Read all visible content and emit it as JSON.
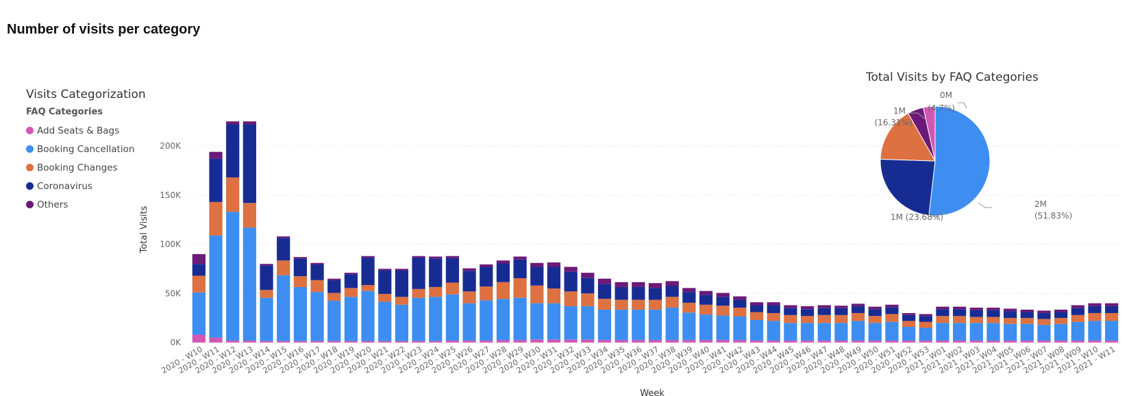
{
  "page": {
    "title": "Number of visits per category"
  },
  "legend": {
    "title": "Visits Categorization",
    "subtitle": "FAQ Categories",
    "items": [
      {
        "label": "Add Seats & Bags",
        "color": "#d357b5"
      },
      {
        "label": "Booking Cancellation",
        "color": "#3d8ef0"
      },
      {
        "label": "Booking Changes",
        "color": "#dd7142"
      },
      {
        "label": "Coronavirus",
        "color": "#172c93"
      },
      {
        "label": "Others",
        "color": "#6b1a78"
      }
    ]
  },
  "chart_data": [
    {
      "type": "bar",
      "stacked": true,
      "xlabel": "Week",
      "ylabel": "Total Visits",
      "ylim": [
        0,
        230000
      ],
      "yticks": [
        0,
        50000,
        100000,
        150000,
        200000
      ],
      "ytick_labels": [
        "0K",
        "50K",
        "100K",
        "150K",
        "200K"
      ],
      "grid": true,
      "categories": [
        "2020 - W10",
        "2020 - W11",
        "2020 - W12",
        "2020 - W13",
        "2020 - W14",
        "2020 - W15",
        "2020 - W16",
        "2020 - W17",
        "2020 - W18",
        "2020 - W19",
        "2020 - W20",
        "2020 - W21",
        "2020 - W22",
        "2020 - W23",
        "2020 - W24",
        "2020 - W25",
        "2020 - W26",
        "2020 - W27",
        "2020 - W28",
        "2020 - W29",
        "2020 - W30",
        "2020 - W31",
        "2020 - W32",
        "2020 - W33",
        "2020 - W34",
        "2020 - W35",
        "2020 - W36",
        "2020 - W37",
        "2020 - W38",
        "2020 - W39",
        "2020 - W40",
        "2020 - W41",
        "2020 - W42",
        "2020 - W43",
        "2020 - W44",
        "2020 - W45",
        "2020 - W46",
        "2020 - W47",
        "2020 - W48",
        "2020 - W49",
        "2020 - W50",
        "2020 - W51",
        "2020 - W52",
        "2020 - W53",
        "2021 - W01",
        "2021 - W02",
        "2021 - W03",
        "2021 - W04",
        "2021 - W05",
        "2021 - W06",
        "2021 - W07",
        "2021 - W08",
        "2021 - W09",
        "2021 - W10",
        "2021 - W11"
      ],
      "series": [
        {
          "name": "Add Seats & Bags",
          "color": "#d357b5",
          "values": [
            8000,
            5000,
            2000,
            2000,
            1500,
            1500,
            1500,
            1500,
            1500,
            1500,
            1500,
            1500,
            1500,
            1500,
            1500,
            2000,
            2000,
            2000,
            2500,
            2500,
            3000,
            3000,
            3000,
            3000,
            2500,
            2500,
            2500,
            2500,
            2500,
            2500,
            2500,
            2500,
            2500,
            2000,
            2000,
            2000,
            2000,
            2000,
            2000,
            2000,
            2000,
            2000,
            2000,
            2000,
            2000,
            2000,
            2000,
            2000,
            2000,
            2000,
            2000,
            2000,
            2000,
            2000,
            2000
          ]
        },
        {
          "name": "Booking Cancellation",
          "color": "#3d8ef0",
          "values": [
            43000,
            104000,
            131000,
            115000,
            44000,
            67000,
            55000,
            50000,
            41000,
            45000,
            51000,
            40000,
            37000,
            44000,
            45000,
            47000,
            38000,
            41000,
            42000,
            43000,
            37000,
            37000,
            34000,
            34000,
            31000,
            31000,
            31000,
            31000,
            33000,
            28000,
            26000,
            25000,
            24000,
            21000,
            20000,
            18000,
            18000,
            18000,
            18000,
            20000,
            18000,
            19000,
            14000,
            13000,
            18000,
            18000,
            18000,
            18000,
            17000,
            17000,
            16000,
            17000,
            19000,
            20000,
            20000
          ]
        },
        {
          "name": "Booking Changes",
          "color": "#dd7142",
          "values": [
            17000,
            34000,
            35000,
            25000,
            8000,
            15000,
            11000,
            12000,
            8000,
            9000,
            6000,
            8000,
            8000,
            9000,
            10000,
            12000,
            12000,
            14000,
            17000,
            20000,
            18000,
            15000,
            15000,
            13000,
            11000,
            10000,
            10000,
            10000,
            11000,
            10000,
            10000,
            10000,
            9000,
            8000,
            8000,
            8000,
            7000,
            8000,
            8000,
            8000,
            7000,
            8000,
            6000,
            6000,
            7000,
            7000,
            6000,
            6000,
            6000,
            6000,
            6000,
            6000,
            7000,
            8000,
            8000
          ]
        },
        {
          "name": "Coronavirus",
          "color": "#172c93",
          "values": [
            12000,
            44000,
            54000,
            80000,
            25000,
            23000,
            18000,
            16000,
            13000,
            14000,
            28000,
            24000,
            27000,
            32000,
            29000,
            25000,
            21000,
            20000,
            19000,
            19000,
            19000,
            22000,
            20000,
            16000,
            15000,
            13000,
            13000,
            12000,
            11000,
            11000,
            10000,
            9000,
            8000,
            7000,
            8000,
            7000,
            7000,
            7000,
            7000,
            7000,
            7000,
            7000,
            6000,
            6000,
            7000,
            7000,
            7000,
            7000,
            7000,
            6000,
            6000,
            6000,
            7000,
            7000,
            7000
          ]
        },
        {
          "name": "Others",
          "color": "#6b1a78",
          "values": [
            10000,
            7000,
            3000,
            3000,
            1500,
            1500,
            1500,
            1500,
            1500,
            1500,
            1500,
            1500,
            1500,
            1500,
            2000,
            2000,
            2500,
            2500,
            3000,
            3000,
            4000,
            4500,
            5000,
            5000,
            5500,
            5000,
            5000,
            5000,
            5000,
            4000,
            4000,
            4000,
            3500,
            3000,
            3000,
            3000,
            3000,
            3000,
            2500,
            2500,
            2500,
            2500,
            2000,
            2000,
            2500,
            2500,
            2500,
            2500,
            2500,
            2500,
            2500,
            2500,
            3000,
            3000,
            3000
          ]
        }
      ]
    },
    {
      "type": "pie",
      "title": "Total Visits by FAQ Categories",
      "slices": [
        {
          "name": "Booking Cancellation",
          "color": "#3d8ef0",
          "value_label": "2M",
          "percent": 51.83,
          "percent_label": "(51.83%)"
        },
        {
          "name": "Coronavirus",
          "color": "#172c93",
          "value_label": "1M",
          "percent": 23.68,
          "percent_label": "(23.68%)"
        },
        {
          "name": "Booking Changes",
          "color": "#dd7142",
          "value_label": "1M",
          "percent": 16.31,
          "percent_label": "(16.31%)"
        },
        {
          "name": "Others",
          "color": "#6b1a78",
          "value_label": "0M",
          "percent": 4.7,
          "percent_label": "(4.7%)"
        },
        {
          "name": "Add Seats & Bags",
          "color": "#d357b5",
          "value_label": "",
          "percent": 3.48,
          "percent_label": ""
        }
      ]
    }
  ]
}
